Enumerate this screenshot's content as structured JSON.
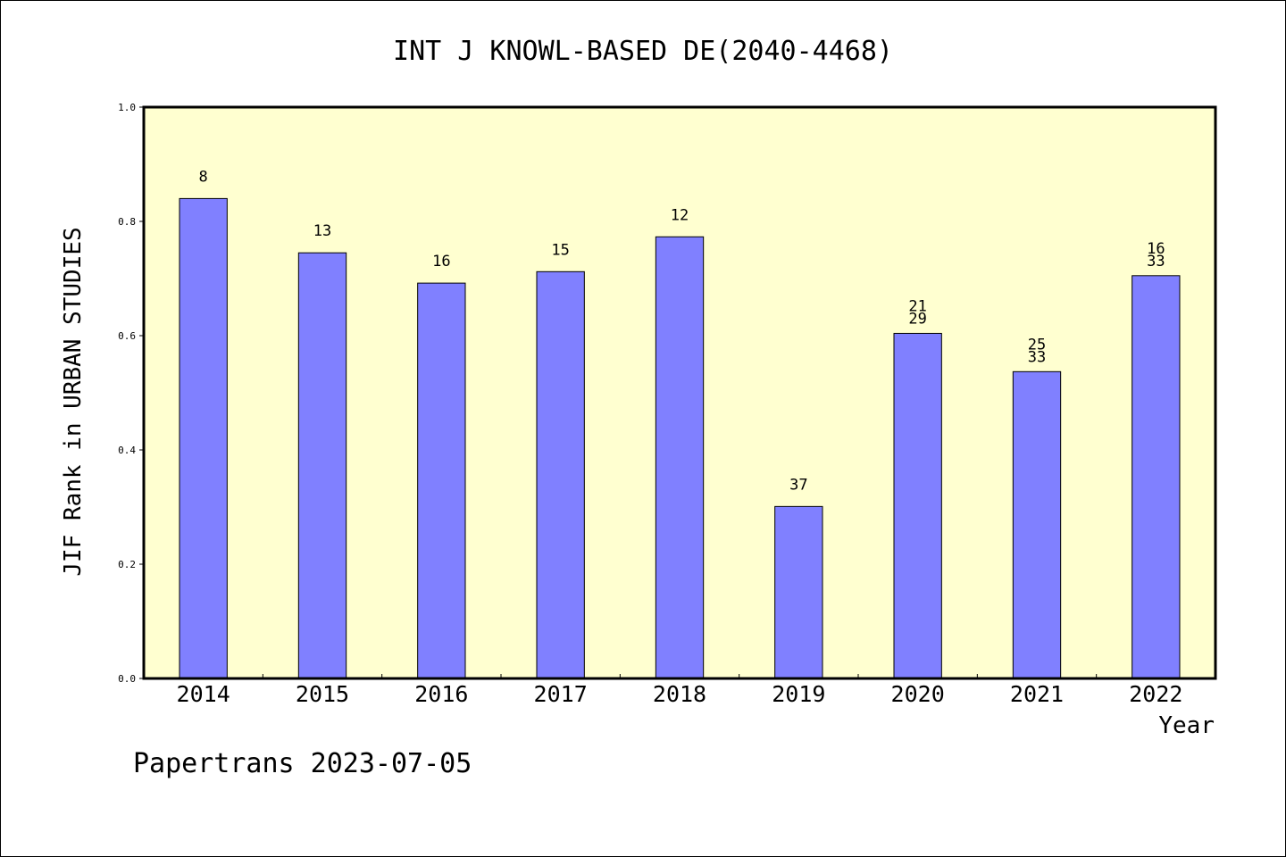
{
  "chart_data": {
    "type": "bar",
    "title": "INT J KNOWL-BASED DE(2040-4468)",
    "xlabel": "Year",
    "ylabel": "JIF Rank in URBAN STUDIES",
    "ylim": [
      0,
      1.0
    ],
    "yticks": [
      "0.0",
      "0.2",
      "0.4",
      "0.6",
      "0.8",
      "1.0"
    ],
    "categories": [
      "2014",
      "2015",
      "2016",
      "2017",
      "2018",
      "2019",
      "2020",
      "2021",
      "2022"
    ],
    "values": [
      0.84,
      0.745,
      0.692,
      0.712,
      0.773,
      0.301,
      0.604,
      0.537,
      0.705
    ],
    "bar_labels": [
      [
        "8"
      ],
      [
        "13"
      ],
      [
        "16"
      ],
      [
        "15"
      ],
      [
        "12"
      ],
      [
        "37"
      ],
      [
        "21",
        "29"
      ],
      [
        "25",
        "33"
      ],
      [
        "16",
        "33"
      ]
    ],
    "grid": false,
    "legend": "none",
    "colors": {
      "bar": "#8080ff",
      "plot_background": "#ffffd0",
      "axis": "#000000"
    }
  },
  "footer": "Papertrans 2023-07-05"
}
